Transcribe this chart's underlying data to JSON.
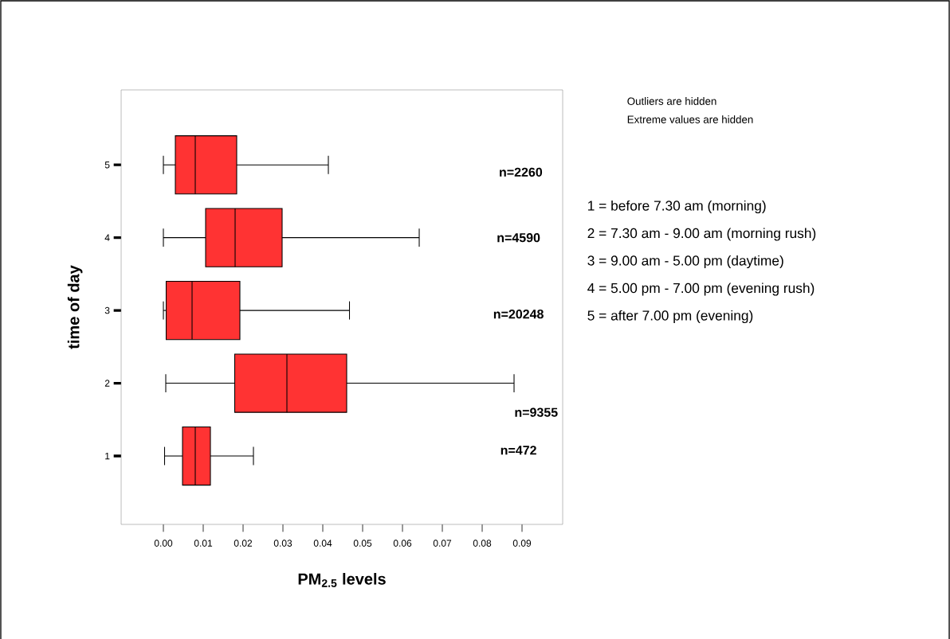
{
  "chart_data": {
    "type": "box",
    "orientation": "horizontal",
    "color": "#ff3333",
    "categories": [
      "5",
      "4",
      "3",
      "2",
      "1"
    ],
    "boxes": [
      {
        "low": 0.0,
        "q1": 0.003,
        "median": 0.008,
        "q3": 0.0184,
        "high": 0.0414
      },
      {
        "low": 0.0,
        "q1": 0.0106,
        "median": 0.018,
        "q3": 0.0298,
        "high": 0.0642
      },
      {
        "low": 0.0,
        "q1": 0.0007,
        "median": 0.0072,
        "q3": 0.0192,
        "high": 0.0467
      },
      {
        "low": 0.0006,
        "q1": 0.0179,
        "median": 0.031,
        "q3": 0.046,
        "high": 0.088
      },
      {
        "low": 0.0003,
        "q1": 0.0048,
        "median": 0.008,
        "q3": 0.0118,
        "high": 0.0226
      }
    ],
    "xlim": [
      -0.0106,
      0.1002
    ],
    "xticks": [
      {
        "value": 0,
        "label": "0.00"
      },
      {
        "value": 0.01,
        "label": "0.01"
      },
      {
        "value": 0.02,
        "label": "0.02"
      },
      {
        "value": 0.03,
        "label": "0.03"
      },
      {
        "value": 0.04,
        "label": "0.04"
      },
      {
        "value": 0.05,
        "label": "0.05"
      },
      {
        "value": 0.06,
        "label": "0.06"
      },
      {
        "value": 0.07,
        "label": "0.07"
      },
      {
        "value": 0.08,
        "label": "0.08"
      },
      {
        "value": 0.09,
        "label": "0.09"
      }
    ],
    "xlabel": "PM$_{2.5}$ levels",
    "ylabel": "time of day",
    "annotations": [
      "n=2260",
      "n=4590",
      "n=20248",
      "n=9355",
      "n=472",
      "Outliers are hidden",
      "Extreme values are hidden",
      "1 = before 7.30 am (morning)",
      "2 = 7.30 am - 9.00 am (morning rush)",
      "3 = 9.00 am - 5.00 pm (daytime)",
      "4 = 5.00 pm - 7.00 pm (evening rush)",
      "5 = after 7.00 pm (evening)"
    ]
  }
}
